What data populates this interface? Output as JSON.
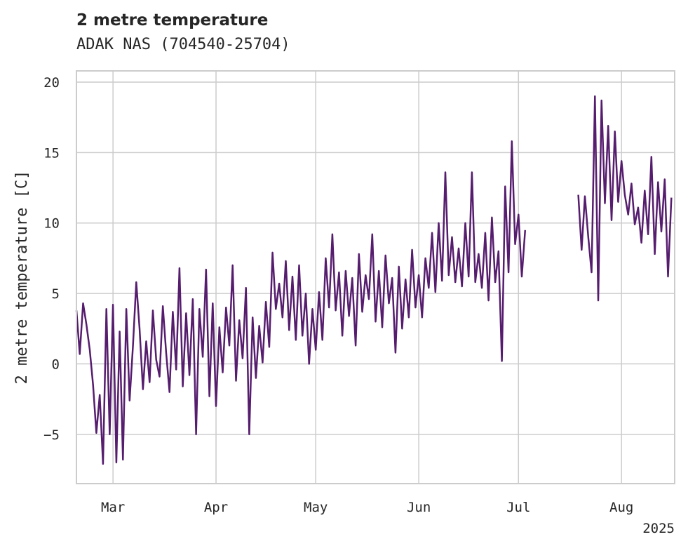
{
  "chart_data": {
    "type": "line",
    "title": "2 metre temperature",
    "subtitle": "ADAK NAS (704540-25704)",
    "ylabel": "2 metre temperature [C]",
    "xlabel": "",
    "year_label": "2025",
    "color": "#561d6e",
    "grid": true,
    "xlim": [
      "2025-02-18",
      "2025-08-17"
    ],
    "ylim": [
      -8.5,
      20.8
    ],
    "y_ticks": [
      -5,
      0,
      5,
      10,
      15,
      20
    ],
    "y_tick_labels": [
      "−5",
      "0",
      "5",
      "10",
      "15",
      "20"
    ],
    "x_ticks": [
      "2025-03-01",
      "2025-04-01",
      "2025-05-01",
      "2025-06-01",
      "2025-07-01",
      "2025-08-01"
    ],
    "x_tick_labels": [
      "Mar",
      "Apr",
      "May",
      "Jun",
      "Jul",
      "Aug"
    ],
    "series": [
      {
        "name": "",
        "segments": [
          {
            "x": [
              "2025-02-18",
              "2025-02-19",
              "2025-02-20",
              "2025-02-21",
              "2025-02-22",
              "2025-02-23",
              "2025-02-24",
              "2025-02-25",
              "2025-02-26",
              "2025-02-27",
              "2025-02-28",
              "2025-03-01",
              "2025-03-02",
              "2025-03-03",
              "2025-03-04",
              "2025-03-05",
              "2025-03-06",
              "2025-03-07",
              "2025-03-08",
              "2025-03-09",
              "2025-03-10",
              "2025-03-11",
              "2025-03-12",
              "2025-03-13",
              "2025-03-14",
              "2025-03-15",
              "2025-03-16",
              "2025-03-17",
              "2025-03-18",
              "2025-03-19",
              "2025-03-20",
              "2025-03-21",
              "2025-03-22",
              "2025-03-23",
              "2025-03-24",
              "2025-03-25",
              "2025-03-26",
              "2025-03-27",
              "2025-03-28",
              "2025-03-29",
              "2025-03-30",
              "2025-03-31",
              "2025-04-01",
              "2025-04-02",
              "2025-04-03",
              "2025-04-04",
              "2025-04-05",
              "2025-04-06",
              "2025-04-07",
              "2025-04-08",
              "2025-04-09",
              "2025-04-10",
              "2025-04-11",
              "2025-04-12",
              "2025-04-13",
              "2025-04-14",
              "2025-04-15",
              "2025-04-16",
              "2025-04-17",
              "2025-04-18",
              "2025-04-19",
              "2025-04-20",
              "2025-04-21",
              "2025-04-22",
              "2025-04-23",
              "2025-04-24",
              "2025-04-25",
              "2025-04-26",
              "2025-04-27",
              "2025-04-28",
              "2025-04-29",
              "2025-04-30",
              "2025-05-01",
              "2025-05-02",
              "2025-05-03",
              "2025-05-04",
              "2025-05-05",
              "2025-05-06",
              "2025-05-07",
              "2025-05-08",
              "2025-05-09",
              "2025-05-10",
              "2025-05-11",
              "2025-05-12",
              "2025-05-13",
              "2025-05-14",
              "2025-05-15",
              "2025-05-16",
              "2025-05-17",
              "2025-05-18",
              "2025-05-19",
              "2025-05-20",
              "2025-05-21",
              "2025-05-22",
              "2025-05-23",
              "2025-05-24",
              "2025-05-25",
              "2025-05-26",
              "2025-05-27",
              "2025-05-28",
              "2025-05-29",
              "2025-05-30",
              "2025-05-31",
              "2025-06-01",
              "2025-06-02",
              "2025-06-03",
              "2025-06-04",
              "2025-06-05",
              "2025-06-06",
              "2025-06-07",
              "2025-06-08",
              "2025-06-09",
              "2025-06-10",
              "2025-06-11",
              "2025-06-12",
              "2025-06-13",
              "2025-06-14",
              "2025-06-15",
              "2025-06-16",
              "2025-06-17",
              "2025-06-18",
              "2025-06-19",
              "2025-06-20",
              "2025-06-21",
              "2025-06-22",
              "2025-06-23",
              "2025-06-24",
              "2025-06-25",
              "2025-06-26",
              "2025-06-27",
              "2025-06-28",
              "2025-06-29",
              "2025-06-30",
              "2025-07-01",
              "2025-07-02",
              "2025-07-03"
            ],
            "y": [
              3.8,
              0.7,
              4.3,
              2.8,
              1.0,
              -1.5,
              -4.9,
              -2.2,
              -7.1,
              3.9,
              -5.0,
              4.2,
              -7.0,
              2.3,
              -6.8,
              3.9,
              -2.6,
              1.3,
              5.8,
              2.5,
              -1.8,
              1.6,
              -1.3,
              3.8,
              0.3,
              -0.9,
              4.1,
              0.8,
              -2.0,
              3.7,
              -0.4,
              6.8,
              -1.6,
              3.6,
              -0.8,
              4.6,
              -5.0,
              3.9,
              0.5,
              6.7,
              -2.3,
              4.3,
              -3.0,
              2.6,
              -0.6,
              4.0,
              1.3,
              7.0,
              -1.2,
              3.1,
              0.4,
              5.4,
              -5.0,
              3.3,
              -1.0,
              2.7,
              0.1,
              4.4,
              1.2,
              7.9,
              3.9,
              5.7,
              3.3,
              7.3,
              2.4,
              6.2,
              1.7,
              7.0,
              2.0,
              5.0,
              0.0,
              3.9,
              1.0,
              5.1,
              1.7,
              7.5,
              4.0,
              9.2,
              3.8,
              6.5,
              2.0,
              6.6,
              3.4,
              6.1,
              1.3,
              7.8,
              3.7,
              6.3,
              4.6,
              9.2,
              3.0,
              6.6,
              2.6,
              7.7,
              4.3,
              6.1,
              0.8,
              6.9,
              2.5,
              6.0,
              3.3,
              8.1,
              4.0,
              6.3,
              3.3,
              7.5,
              5.4,
              9.3,
              5.1,
              10.0,
              5.9,
              13.6,
              6.3,
              9.0,
              5.8,
              8.2,
              5.5,
              10.0,
              6.2,
              13.6,
              5.8,
              7.8,
              5.4,
              9.3,
              4.5,
              10.4,
              5.8,
              8.0,
              0.2,
              12.6,
              6.5,
              15.8,
              8.5,
              10.6,
              6.2,
              9.5
            ]
          },
          {
            "x": [
              "2025-07-19",
              "2025-07-20",
              "2025-07-21",
              "2025-07-22",
              "2025-07-23",
              "2025-07-24",
              "2025-07-25",
              "2025-07-26",
              "2025-07-27",
              "2025-07-28",
              "2025-07-29",
              "2025-07-30",
              "2025-07-31",
              "2025-08-01",
              "2025-08-02",
              "2025-08-03",
              "2025-08-04",
              "2025-08-05",
              "2025-08-06",
              "2025-08-07",
              "2025-08-08",
              "2025-08-09",
              "2025-08-10",
              "2025-08-11",
              "2025-08-12",
              "2025-08-13",
              "2025-08-14",
              "2025-08-15",
              "2025-08-16"
            ],
            "y": [
              12.0,
              8.1,
              11.9,
              9.0,
              6.5,
              19.0,
              4.5,
              18.7,
              11.4,
              16.9,
              10.2,
              16.5,
              11.5,
              14.4,
              12.0,
              10.6,
              12.8,
              9.9,
              11.1,
              8.6,
              12.3,
              9.2,
              14.7,
              7.8,
              12.9,
              9.4,
              13.1,
              6.2,
              11.8
            ]
          }
        ]
      }
    ]
  }
}
